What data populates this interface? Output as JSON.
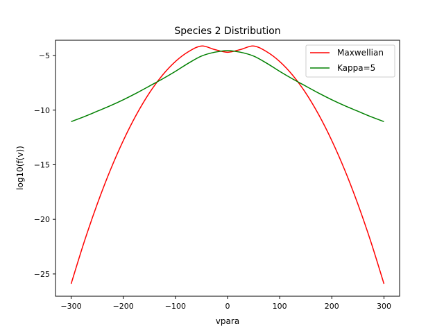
{
  "chart_data": {
    "type": "line",
    "title": "Species 2 Distribution",
    "xlabel": "vpara",
    "ylabel": "log10(f(v))",
    "xlim": [
      -330,
      330
    ],
    "ylim": [
      -27.04,
      -3.6
    ],
    "xticks": [
      -300,
      -200,
      -100,
      0,
      100,
      200,
      300
    ],
    "xtick_labels": [
      "−300",
      "−200",
      "−100",
      "0",
      "100",
      "200",
      "300"
    ],
    "yticks": [
      -25,
      -20,
      -15,
      -10,
      -5
    ],
    "ytick_labels": [
      "−25",
      "−20",
      "−15",
      "−10",
      "−5"
    ],
    "grid": false,
    "legend_position": "top-right",
    "series": [
      {
        "name": "Maxwellian",
        "color": "#ff0000",
        "x": [
          -300,
          -275,
          -250,
          -225,
          -200,
          -175,
          -150,
          -125,
          -100,
          -75,
          -50,
          -25,
          0,
          25,
          50,
          75,
          100,
          125,
          150,
          175,
          200,
          225,
          250,
          275,
          300
        ],
        "y": [
          -25.9,
          -22.07,
          -18.61,
          -15.51,
          -12.79,
          -10.43,
          -8.43,
          -6.81,
          -5.55,
          -4.65,
          -4.13,
          -4.45,
          -4.7,
          -4.45,
          -4.13,
          -4.65,
          -5.55,
          -6.81,
          -8.43,
          -10.43,
          -12.79,
          -15.51,
          -18.61,
          -22.07,
          -25.9
        ]
      },
      {
        "name": "Kappa=5",
        "color": "#008000",
        "x": [
          -300,
          -275,
          -250,
          -225,
          -200,
          -175,
          -150,
          -125,
          -100,
          -75,
          -50,
          -25,
          0,
          25,
          50,
          75,
          100,
          125,
          150,
          175,
          200,
          225,
          250,
          275,
          300
        ],
        "y": [
          -11.05,
          -10.6,
          -10.1,
          -9.6,
          -9.05,
          -8.45,
          -7.8,
          -7.15,
          -6.45,
          -5.7,
          -5.05,
          -4.7,
          -4.55,
          -4.7,
          -5.05,
          -5.7,
          -6.45,
          -7.15,
          -7.8,
          -8.45,
          -9.05,
          -9.6,
          -10.1,
          -10.6,
          -11.05
        ]
      }
    ]
  }
}
